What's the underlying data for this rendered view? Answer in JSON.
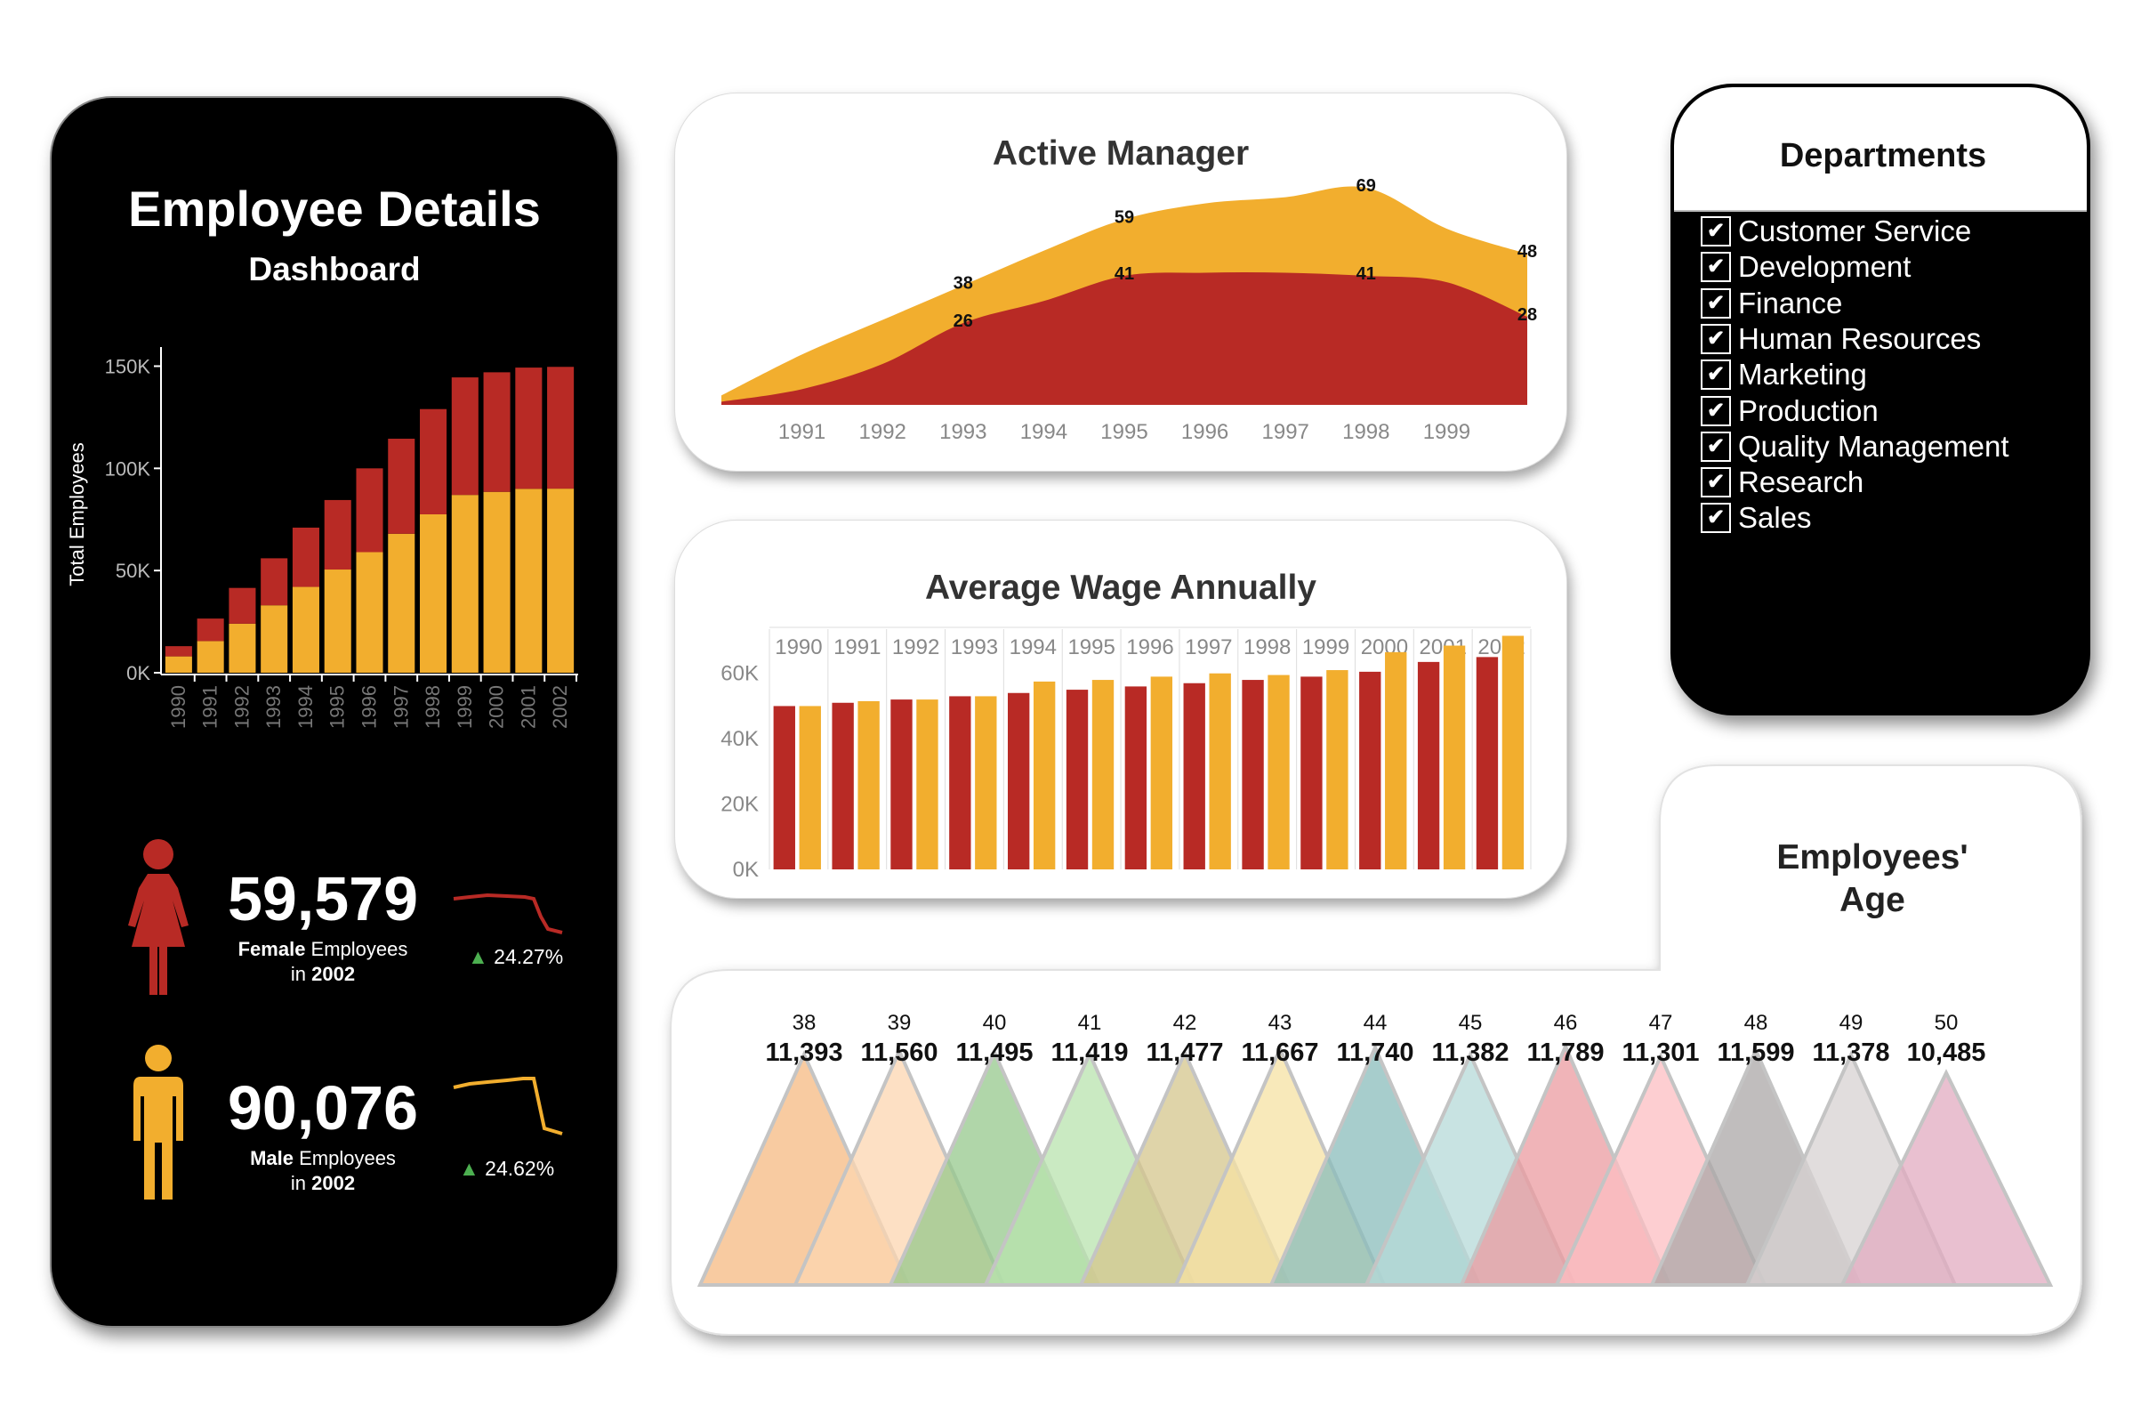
{
  "dashboard": {
    "title": "Employee Details",
    "subtitle": "Dashboard"
  },
  "colors": {
    "female": "#b82a25",
    "male": "#f2ae2e",
    "up": "#4caf50"
  },
  "kpi": {
    "female": {
      "value": "59,579",
      "label_bold": "Female",
      "label_rest": " Employees",
      "in": "in ",
      "year": "2002",
      "change": "24.27%",
      "change_icon": "triangle-up-icon"
    },
    "male": {
      "value": "90,076",
      "label_bold": "Male",
      "label_rest": " Employees",
      "in": "in ",
      "year": "2002",
      "change": "24.62%",
      "change_icon": "triangle-up-icon"
    }
  },
  "active_manager": {
    "title": "Active Manager"
  },
  "wage": {
    "title": "Average Wage Annually"
  },
  "departments": {
    "title": "Departments",
    "items": [
      "Customer Service",
      "Development",
      "Finance",
      "Human Resources",
      "Marketing",
      "Production",
      "Quality Management",
      "Research",
      "Sales"
    ],
    "checked_icon": "checkmark-icon"
  },
  "age": {
    "title_line1": "Employees'",
    "title_line2": "Age"
  },
  "chart_data": [
    {
      "id": "total-employees",
      "type": "bar",
      "stacked": true,
      "categories": [
        "1990",
        "1991",
        "1992",
        "1993",
        "1994",
        "1995",
        "1996",
        "1997",
        "1998",
        "1999",
        "2000",
        "2001",
        "2002"
      ],
      "series": [
        {
          "color": "#f2ae2e",
          "values": [
            8000,
            15500,
            24000,
            33000,
            42000,
            50500,
            59000,
            68000,
            77500,
            87000,
            88500,
            90000,
            90076
          ]
        },
        {
          "color": "#b82a25",
          "values": [
            5000,
            11000,
            17500,
            23000,
            29000,
            34000,
            41000,
            46500,
            51500,
            57500,
            58500,
            59300,
            59579
          ]
        }
      ],
      "ylabel": "Total Employees",
      "yticks": [
        "0K",
        "50K",
        "100K",
        "150K"
      ],
      "ytick_values": [
        0,
        50000,
        100000,
        150000
      ],
      "ylim": [
        0,
        155000
      ]
    },
    {
      "id": "active-manager",
      "type": "area",
      "x": [
        "1991",
        "1992",
        "1993",
        "1994",
        "1995",
        "1996",
        "1997",
        "1998",
        "1999"
      ],
      "x_values": [
        1990,
        1991,
        1992,
        1993,
        1994,
        1995,
        1996,
        1997,
        1998,
        1999,
        2000
      ],
      "series": [
        {
          "color": "#f2ae2e",
          "values": [
            3,
            16,
            27,
            38,
            49,
            59,
            64,
            66,
            69,
            56,
            48
          ]
        },
        {
          "color": "#b82a25",
          "values": [
            1,
            5,
            13,
            26,
            33,
            41,
            42,
            42,
            41,
            39,
            28
          ]
        }
      ],
      "labels": [
        {
          "x": 1993,
          "y": 38,
          "text": "38"
        },
        {
          "x": 1995,
          "y": 59,
          "text": "59"
        },
        {
          "x": 1998,
          "y": 69,
          "text": "69"
        },
        {
          "x": 2000,
          "y": 48,
          "text": "48"
        },
        {
          "x": 1993,
          "y": 26,
          "text": "26"
        },
        {
          "x": 1995,
          "y": 41,
          "text": "41"
        },
        {
          "x": 1998,
          "y": 41,
          "text": "41"
        },
        {
          "x": 2000,
          "y": 28,
          "text": "28"
        }
      ],
      "ylim": [
        0,
        82
      ]
    },
    {
      "id": "average-wage",
      "type": "bar",
      "categories": [
        "1990",
        "1991",
        "1992",
        "1993",
        "1994",
        "1995",
        "1996",
        "1997",
        "1998",
        "1999",
        "2000",
        "2001",
        "2002"
      ],
      "series": [
        {
          "color": "#b82a25",
          "values": [
            50000,
            51000,
            52000,
            53000,
            54000,
            55000,
            56000,
            57000,
            58000,
            59000,
            60500,
            63500,
            65000
          ]
        },
        {
          "color": "#f2ae2e",
          "values": [
            50000,
            51500,
            52000,
            53000,
            57500,
            58000,
            59000,
            60000,
            59500,
            61000,
            66500,
            68500,
            71500
          ]
        }
      ],
      "yticks": [
        "0K",
        "20K",
        "40K",
        "60K"
      ],
      "ytick_values": [
        0,
        20000,
        40000,
        60000
      ],
      "ylim": [
        0,
        73000
      ]
    },
    {
      "id": "employees-age",
      "type": "area",
      "categories": [
        "38",
        "39",
        "40",
        "41",
        "42",
        "43",
        "44",
        "45",
        "46",
        "47",
        "48",
        "49",
        "50"
      ],
      "values": [
        11393,
        11560,
        11495,
        11419,
        11477,
        11667,
        11740,
        11382,
        11789,
        11301,
        11599,
        11378,
        10485
      ],
      "value_labels": [
        "11,393",
        "11,560",
        "11,495",
        "11,419",
        "11,477",
        "11,667",
        "11,740",
        "11,382",
        "11,789",
        "11,301",
        "11,599",
        "11,378",
        "10,485"
      ],
      "colors": [
        "#f5b982",
        "#fcd6b0",
        "#96c88c",
        "#b8e3ad",
        "#d4c68c",
        "#f5e2a3",
        "#89bcbb",
        "#b6d9d8",
        "#eb9ba0",
        "#fcbec2",
        "#aba7a7",
        "#d7d2d2",
        "#e2abc0"
      ]
    }
  ]
}
